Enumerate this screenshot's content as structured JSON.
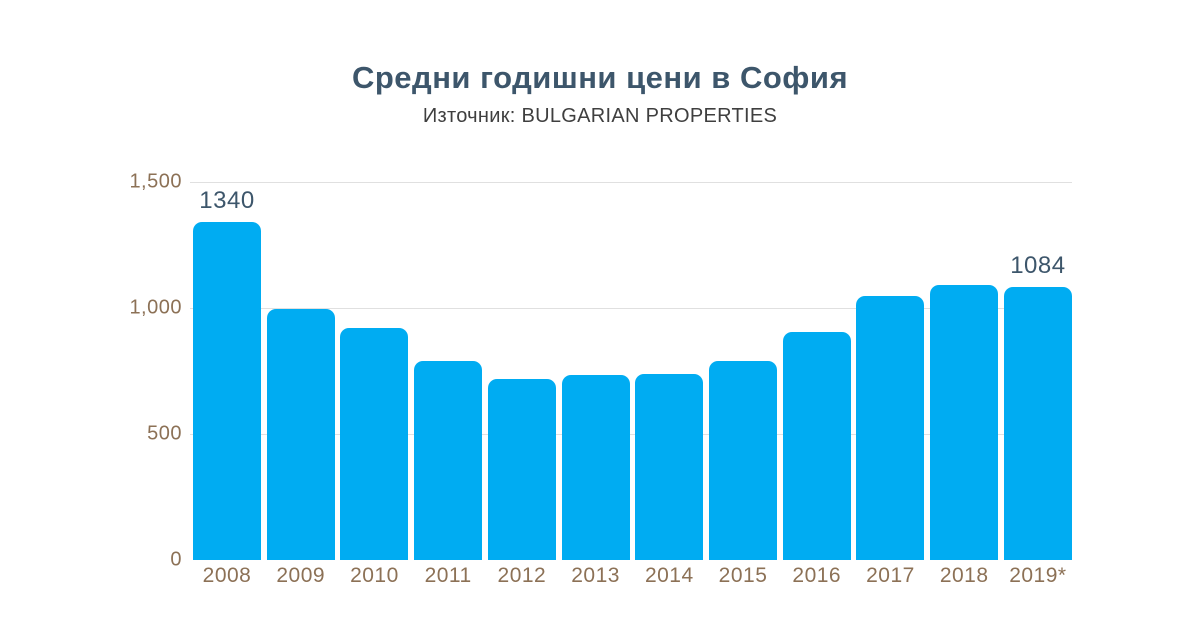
{
  "header": {
    "title": "Средни годишни цени в София",
    "subtitle": "Източник: BULGARIAN PROPERTIES"
  },
  "chart_data": {
    "type": "bar",
    "title": "Средни годишни цени в София",
    "subtitle": "Източник: BULGARIAN PROPERTIES",
    "categories": [
      "2008",
      "2009",
      "2010",
      "2011",
      "2012",
      "2013",
      "2014",
      "2015",
      "2016",
      "2017",
      "2018",
      "2019*"
    ],
    "values": [
      1340,
      995,
      920,
      790,
      720,
      735,
      740,
      790,
      905,
      1047,
      1092,
      1084
    ],
    "bar_labels": [
      "1340",
      "",
      "",
      "",
      "",
      "",
      "",
      "",
      "",
      "",
      "",
      "1084"
    ],
    "xlabel": "",
    "ylabel": "",
    "ylim": [
      0,
      1500
    ],
    "yticks": [
      0,
      500,
      1000,
      1500
    ],
    "ytick_labels": [
      "0",
      "500",
      "1,000",
      "1,500"
    ],
    "grid": true,
    "legend": "none",
    "colors": {
      "bar": "#00ACF2",
      "grid": "#E0E0E0",
      "ticks": "#8C7156",
      "value_labels": "#3D566B",
      "title": "#3D566B",
      "subtitle": "#3F3F3F"
    }
  }
}
